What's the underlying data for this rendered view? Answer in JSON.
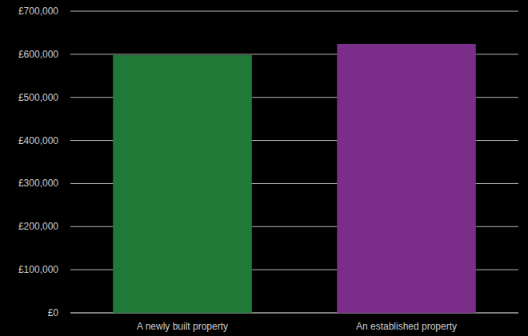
{
  "chart_data": {
    "type": "bar",
    "categories": [
      "A newly built property",
      "An established property"
    ],
    "values": [
      598000,
      624000
    ],
    "colors": [
      "#1f7a38",
      "#7b2d8a"
    ],
    "ylim": [
      0,
      700000
    ],
    "yticks": [
      {
        "value": 0,
        "label": "£0"
      },
      {
        "value": 100000,
        "label": "£100,000"
      },
      {
        "value": 200000,
        "label": "£200,000"
      },
      {
        "value": 300000,
        "label": "£300,000"
      },
      {
        "value": 400000,
        "label": "£400,000"
      },
      {
        "value": 500000,
        "label": "£500,000"
      },
      {
        "value": 600000,
        "label": "£600,000"
      },
      {
        "value": 700000,
        "label": "£700,000"
      }
    ],
    "grid": true
  }
}
